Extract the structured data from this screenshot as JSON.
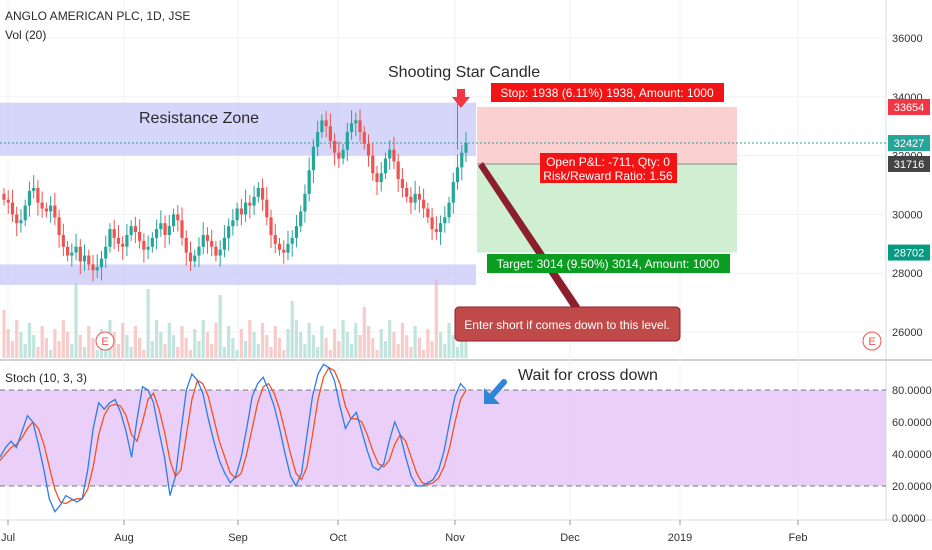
{
  "header": {
    "symbol_title": "ANGLO AMERICAN PLC, 1D, JSE",
    "volume_label": "Vol (20)",
    "stoch_label": "Stoch (10, 3, 3)"
  },
  "annotations": {
    "resistance_zone": "Resistance Zone",
    "shooting_star": "Shooting Star Candle",
    "wait_cross": "Wait for cross down",
    "enter_short": "Enter short if comes down to this level.",
    "stop_box": "Stop: 1938 (6.11%) 1938, Amount: 1000",
    "open_pl": "Open P&L: -711, Qty: 0",
    "risk_reward": "Risk/Reward Ratio: 1.56",
    "target_box": "Target: 3014 (9.50%) 3014, Amount: 1000",
    "earnings_marker": "E"
  },
  "price_badges": [
    {
      "value": 33654,
      "label": "33654",
      "color": "#f23645"
    },
    {
      "value": 32427,
      "label": "32427",
      "color": "#26a69a"
    },
    {
      "value": 31716,
      "label": "31716",
      "color": "#444444"
    },
    {
      "value": 28702,
      "label": "28702",
      "color": "#089981"
    }
  ],
  "colors": {
    "up": "#26a69a",
    "down": "#ef5350",
    "zone": "#c8c8f8",
    "stop_fill": "#fbd0d0",
    "target_fill": "#cfeed2",
    "stoch_k": "#2f7be5",
    "stoch_d": "#f4511e",
    "stoch_bg": "#e6c8f8"
  },
  "chart_data": {
    "type": "candlestick",
    "title": "ANGLO AMERICAN PLC, 1D, JSE",
    "price_axis": {
      "ticks": [
        26000,
        28000,
        30000,
        32000,
        34000,
        36000
      ],
      "labels": [
        "26000",
        "28000",
        "30000",
        "32000",
        "34000",
        "36000"
      ],
      "range": [
        25000,
        37000
      ]
    },
    "stoch_axis": {
      "ticks": [
        0,
        20,
        40,
        60,
        80
      ],
      "labels": [
        "0.0000",
        "20.0000",
        "40.0000",
        "60.0000",
        "80.0000"
      ],
      "range": [
        -2,
        100
      ]
    },
    "time_axis": [
      "Jul",
      "Aug",
      "Sep",
      "Oct",
      "Nov",
      "Dec",
      "2019",
      "Feb"
    ],
    "resistance_zone": [
      32000,
      33800
    ],
    "support_zone": [
      27600,
      28300
    ],
    "trade": {
      "entry": 31716,
      "stop": 33654,
      "target": 28702
    },
    "close_price": [
      30500,
      30400,
      30000,
      29700,
      29800,
      30300,
      30800,
      30900,
      30400,
      30200,
      30100,
      30300,
      29900,
      29300,
      28900,
      28600,
      28700,
      28900,
      28400,
      28600,
      28300,
      28100,
      28200,
      28500,
      28900,
      29500,
      29200,
      29000,
      28900,
      29300,
      29600,
      29400,
      29100,
      28800,
      28900,
      29200,
      29500,
      29700,
      29300,
      29600,
      30000,
      29800,
      29200,
      28700,
      28400,
      28600,
      28900,
      29300,
      29100,
      28900,
      28600,
      28800,
      29200,
      29600,
      29800,
      30200,
      30000,
      30400,
      30300,
      30600,
      30900,
      30500,
      29900,
      29300,
      29000,
      28800,
      28700,
      29000,
      29200,
      29600,
      30100,
      30700,
      31500,
      32300,
      32800,
      33200,
      33000,
      32500,
      32100,
      31900,
      32200,
      32800,
      33100,
      33200,
      32800,
      32400,
      32000,
      31400,
      31100,
      31400,
      31900,
      32200,
      31800,
      31200,
      30900,
      30600,
      30400,
      30700,
      30500,
      30200,
      29900,
      29500,
      29400,
      29700,
      29900,
      30400,
      31100,
      31600,
      32100,
      32427
    ],
    "stoch_k": [
      38,
      44,
      48,
      44,
      54,
      64,
      60,
      46,
      30,
      12,
      4,
      8,
      14,
      12,
      10,
      12,
      30,
      56,
      72,
      68,
      72,
      74,
      66,
      54,
      38,
      62,
      82,
      80,
      72,
      54,
      38,
      14,
      26,
      54,
      80,
      90,
      86,
      78,
      62,
      48,
      36,
      28,
      22,
      26,
      38,
      56,
      76,
      84,
      88,
      80,
      70,
      56,
      40,
      26,
      20,
      28,
      52,
      76,
      90,
      96,
      94,
      86,
      70,
      56,
      62,
      66,
      54,
      42,
      32,
      30,
      34,
      48,
      60,
      52,
      38,
      26,
      20,
      20,
      22,
      24,
      30,
      42,
      60,
      76,
      84,
      80
    ],
    "stoch_d": [
      36,
      40,
      44,
      46,
      50,
      56,
      60,
      56,
      46,
      32,
      18,
      10,
      9,
      11,
      12,
      12,
      18,
      32,
      52,
      64,
      70,
      71,
      70,
      64,
      52,
      48,
      60,
      74,
      78,
      68,
      54,
      36,
      26,
      30,
      52,
      74,
      86,
      84,
      76,
      62,
      48,
      38,
      28,
      25,
      28,
      40,
      56,
      72,
      82,
      84,
      78,
      68,
      54,
      40,
      28,
      24,
      32,
      52,
      74,
      88,
      94,
      92,
      84,
      70,
      62,
      62,
      60,
      52,
      42,
      34,
      32,
      36,
      46,
      52,
      48,
      38,
      28,
      22,
      21,
      22,
      25,
      32,
      44,
      60,
      74,
      80
    ]
  }
}
